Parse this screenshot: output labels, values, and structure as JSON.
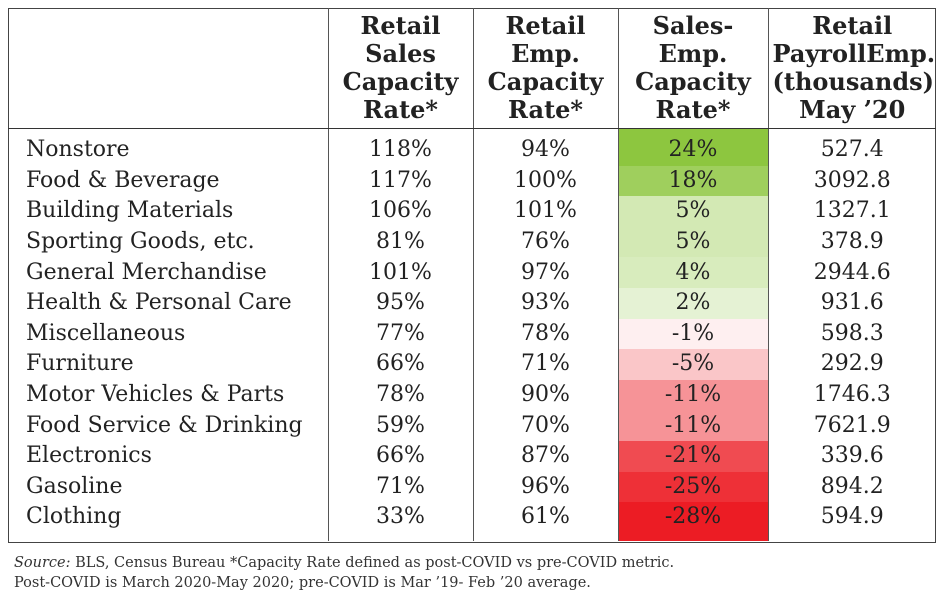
{
  "chart_data": {
    "type": "table",
    "columns": [
      "",
      "Retail\nSales\nCapacity\nRate*",
      "Retail\nEmp.\nCapacity\nRate*",
      "Sales-\nEmp.\nCapacity\nRate*",
      "Retail\nPayrollEmp.\n(thousands)\nMay ’20"
    ],
    "rows": [
      {
        "category": "Nonstore",
        "sales": "118%",
        "emp": "94%",
        "diff": "24%",
        "payroll": "527.4",
        "diff_value": 24
      },
      {
        "category": "Food & Beverage",
        "sales": "117%",
        "emp": "100%",
        "diff": "18%",
        "payroll": "3092.8",
        "diff_value": 18
      },
      {
        "category": "Building Materials",
        "sales": "106%",
        "emp": "101%",
        "diff": "5%",
        "payroll": "1327.1",
        "diff_value": 5
      },
      {
        "category": "Sporting Goods, etc.",
        "sales": "81%",
        "emp": "76%",
        "diff": "5%",
        "payroll": "378.9",
        "diff_value": 5
      },
      {
        "category": "General Merchandise",
        "sales": "101%",
        "emp": "97%",
        "diff": "4%",
        "payroll": "2944.6",
        "diff_value": 4
      },
      {
        "category": "Health & Personal Care",
        "sales": "95%",
        "emp": "93%",
        "diff": "2%",
        "payroll": "931.6",
        "diff_value": 2
      },
      {
        "category": "Miscellaneous",
        "sales": "77%",
        "emp": "78%",
        "diff": "-1%",
        "payroll": "598.3",
        "diff_value": -1
      },
      {
        "category": "Furniture",
        "sales": "66%",
        "emp": "71%",
        "diff": "-5%",
        "payroll": "292.9",
        "diff_value": -5
      },
      {
        "category": "Motor Vehicles & Parts",
        "sales": "78%",
        "emp": "90%",
        "diff": "-11%",
        "payroll": "1746.3",
        "diff_value": -11
      },
      {
        "category": "Food Service & Drinking",
        "sales": "59%",
        "emp": "70%",
        "diff": "-11%",
        "payroll": "7621.9",
        "diff_value": -11
      },
      {
        "category": "Electronics",
        "sales": "66%",
        "emp": "87%",
        "diff": "-21%",
        "payroll": "339.6",
        "diff_value": -21
      },
      {
        "category": "Gasoline",
        "sales": "71%",
        "emp": "96%",
        "diff": "-25%",
        "payroll": "894.2",
        "diff_value": -25
      },
      {
        "category": "Clothing",
        "sales": "33%",
        "emp": "61%",
        "diff": "-28%",
        "payroll": "594.9",
        "diff_value": -28
      }
    ],
    "heat_colors": {
      "positive": "#8dc63f",
      "neutral": "#ffffff",
      "negative": "#ec1c24"
    }
  },
  "source": {
    "label": "Source:",
    "line1": " BLS, Census Bureau  *Capacity Rate defined as post-COVID vs pre-COVID metric.",
    "line2": "Post-COVID is March 2020-May 2020; pre-COVID is Mar ’19- Feb ’20 average."
  }
}
